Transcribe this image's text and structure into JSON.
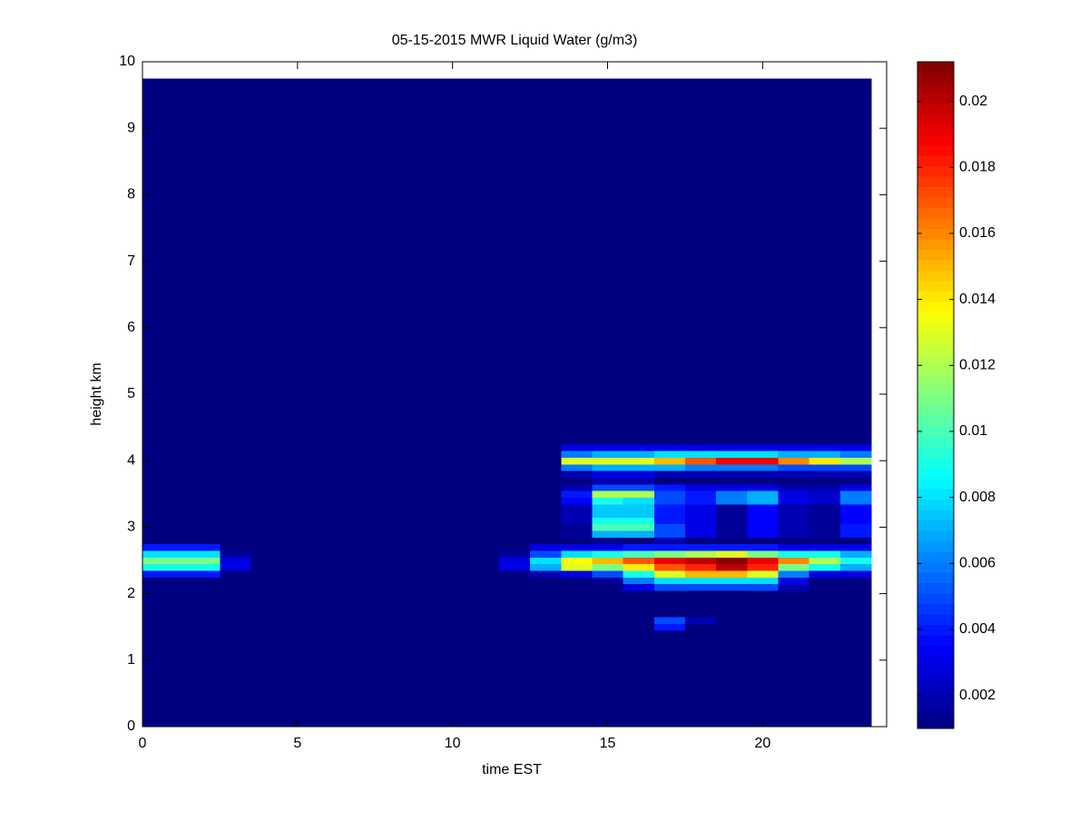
{
  "chart_data": {
    "type": "heatmap",
    "title": "05-15-2015 MWR Liquid Water (g/m3)",
    "xlabel": "time EST",
    "ylabel": "height km",
    "colormap": "jet",
    "xlim": [
      0,
      24
    ],
    "ylim": [
      0,
      10
    ],
    "xticks": [
      0,
      5,
      10,
      15,
      20
    ],
    "yticks": [
      0,
      1,
      2,
      3,
      4,
      5,
      6,
      7,
      8,
      9,
      10
    ],
    "clim": [
      0.001,
      0.0212
    ],
    "cticks": [
      0.002,
      0.004,
      0.006,
      0.008,
      0.01,
      0.012,
      0.014,
      0.016,
      0.018,
      0.02
    ],
    "x_edges": [
      0,
      2.5,
      3.5,
      11.5,
      12.5,
      13.5,
      14.5,
      15.5,
      16.5,
      17.5,
      18.5,
      19.5,
      20.5,
      21.5,
      22.5,
      23.5
    ],
    "y_edges": [
      0,
      1.45,
      1.55,
      1.65,
      2.05,
      2.15,
      2.25,
      2.35,
      2.45,
      2.55,
      2.65,
      2.75,
      2.85,
      2.95,
      3.05,
      3.15,
      3.25,
      3.35,
      3.45,
      3.55,
      3.65,
      3.75,
      3.85,
      3.95,
      4.05,
      4.15,
      4.25,
      9.75
    ],
    "z": [
      [
        0.001,
        0.001,
        0.001,
        0.001,
        0.001,
        0.001,
        0.001,
        0.001,
        0.001,
        0.001,
        0.001,
        0.001,
        0.001,
        0.001,
        0.001
      ],
      [
        0.001,
        0.001,
        0.001,
        0.001,
        0.001,
        0.001,
        0.001,
        0.001,
        0.004,
        0.001,
        0.001,
        0.001,
        0.001,
        0.001,
        0.001
      ],
      [
        0.001,
        0.001,
        0.001,
        0.001,
        0.001,
        0.001,
        0.001,
        0.001,
        0.005,
        0.002,
        0.001,
        0.001,
        0.001,
        0.001,
        0.001
      ],
      [
        0.001,
        0.001,
        0.001,
        0.001,
        0.001,
        0.001,
        0.001,
        0.001,
        0.001,
        0.001,
        0.001,
        0.001,
        0.001,
        0.001,
        0.001
      ],
      [
        0.001,
        0.001,
        0.001,
        0.001,
        0.001,
        0.001,
        0.001,
        0.003,
        0.005,
        0.005,
        0.005,
        0.005,
        0.002,
        0.001,
        0.001
      ],
      [
        0.001,
        0.001,
        0.001,
        0.001,
        0.001,
        0.001,
        0.0015,
        0.006,
        0.008,
        0.008,
        0.008,
        0.008,
        0.003,
        0.001,
        0.001
      ],
      [
        0.004,
        0.001,
        0.001,
        0.001,
        0.002,
        0.003,
        0.005,
        0.009,
        0.013,
        0.015,
        0.015,
        0.013,
        0.006,
        0.003,
        0.003
      ],
      [
        0.009,
        0.003,
        0.001,
        0.003,
        0.007,
        0.013,
        0.011,
        0.014,
        0.017,
        0.018,
        0.02,
        0.018,
        0.011,
        0.009,
        0.007
      ],
      [
        0.011,
        0.003,
        0.001,
        0.003,
        0.008,
        0.0135,
        0.015,
        0.017,
        0.019,
        0.02,
        0.021,
        0.019,
        0.016,
        0.012,
        0.009
      ],
      [
        0.008,
        0.0015,
        0.001,
        0.0015,
        0.005,
        0.008,
        0.009,
        0.01,
        0.011,
        0.012,
        0.013,
        0.011,
        0.009,
        0.009,
        0.007
      ],
      [
        0.004,
        0.001,
        0.001,
        0.001,
        0.003,
        0.003,
        0.003,
        0.004,
        0.004,
        0.004,
        0.004,
        0.004,
        0.003,
        0.003,
        0.003
      ],
      [
        0.001,
        0.001,
        0.001,
        0.001,
        0.001,
        0.001,
        0.0015,
        0.001,
        0.002,
        0.001,
        0.001,
        0.001,
        0.001,
        0.001,
        0.001
      ],
      [
        0.001,
        0.001,
        0.001,
        0.001,
        0.001,
        0.0015,
        0.007,
        0.007,
        0.005,
        0.003,
        0.0015,
        0.0035,
        0.002,
        0.0015,
        0.004
      ],
      [
        0.001,
        0.001,
        0.001,
        0.001,
        0.001,
        0.0015,
        0.01,
        0.01,
        0.005,
        0.003,
        0.0015,
        0.0035,
        0.002,
        0.0015,
        0.004
      ],
      [
        0.001,
        0.001,
        0.001,
        0.001,
        0.001,
        0.002,
        0.009,
        0.009,
        0.004,
        0.003,
        0.0015,
        0.0035,
        0.002,
        0.0015,
        0.0035
      ],
      [
        0.001,
        0.001,
        0.001,
        0.001,
        0.001,
        0.002,
        0.0075,
        0.0075,
        0.004,
        0.003,
        0.0015,
        0.0035,
        0.002,
        0.0015,
        0.0035
      ],
      [
        0.001,
        0.001,
        0.001,
        0.001,
        0.001,
        0.002,
        0.0075,
        0.0075,
        0.004,
        0.003,
        0.0015,
        0.0035,
        0.002,
        0.0015,
        0.0035
      ],
      [
        0.001,
        0.001,
        0.001,
        0.001,
        0.001,
        0.0035,
        0.009,
        0.008,
        0.005,
        0.004,
        0.006,
        0.007,
        0.003,
        0.0025,
        0.006
      ],
      [
        0.001,
        0.001,
        0.001,
        0.001,
        0.001,
        0.004,
        0.012,
        0.012,
        0.005,
        0.004,
        0.006,
        0.007,
        0.003,
        0.0025,
        0.006
      ],
      [
        0.001,
        0.001,
        0.001,
        0.001,
        0.001,
        0.002,
        0.005,
        0.005,
        0.004,
        0.003,
        0.003,
        0.003,
        0.002,
        0.002,
        0.003
      ],
      [
        0.001,
        0.001,
        0.001,
        0.001,
        0.001,
        0.001,
        0.002,
        0.002,
        0.001,
        0.001,
        0.001,
        0.001,
        0.001,
        0.001,
        0.001
      ],
      [
        0.001,
        0.001,
        0.001,
        0.001,
        0.001,
        0.002,
        0.003,
        0.003,
        0.002,
        0.002,
        0.002,
        0.002,
        0.002,
        0.002,
        0.002
      ],
      [
        0.001,
        0.001,
        0.001,
        0.001,
        0.001,
        0.006,
        0.007,
        0.007,
        0.007,
        0.006,
        0.006,
        0.006,
        0.005,
        0.005,
        0.005
      ],
      [
        0.001,
        0.001,
        0.001,
        0.001,
        0.001,
        0.013,
        0.013,
        0.013,
        0.015,
        0.017,
        0.019,
        0.019,
        0.016,
        0.014,
        0.012
      ],
      [
        0.001,
        0.001,
        0.001,
        0.001,
        0.001,
        0.006,
        0.007,
        0.007,
        0.008,
        0.008,
        0.008,
        0.008,
        0.007,
        0.007,
        0.006
      ],
      [
        0.001,
        0.001,
        0.001,
        0.001,
        0.001,
        0.003,
        0.003,
        0.003,
        0.003,
        0.003,
        0.003,
        0.003,
        0.003,
        0.003,
        0.003
      ],
      [
        0.001,
        0.001,
        0.001,
        0.001,
        0.001,
        0.001,
        0.001,
        0.001,
        0.001,
        0.001,
        0.001,
        0.001,
        0.001,
        0.001,
        0.001
      ]
    ]
  }
}
